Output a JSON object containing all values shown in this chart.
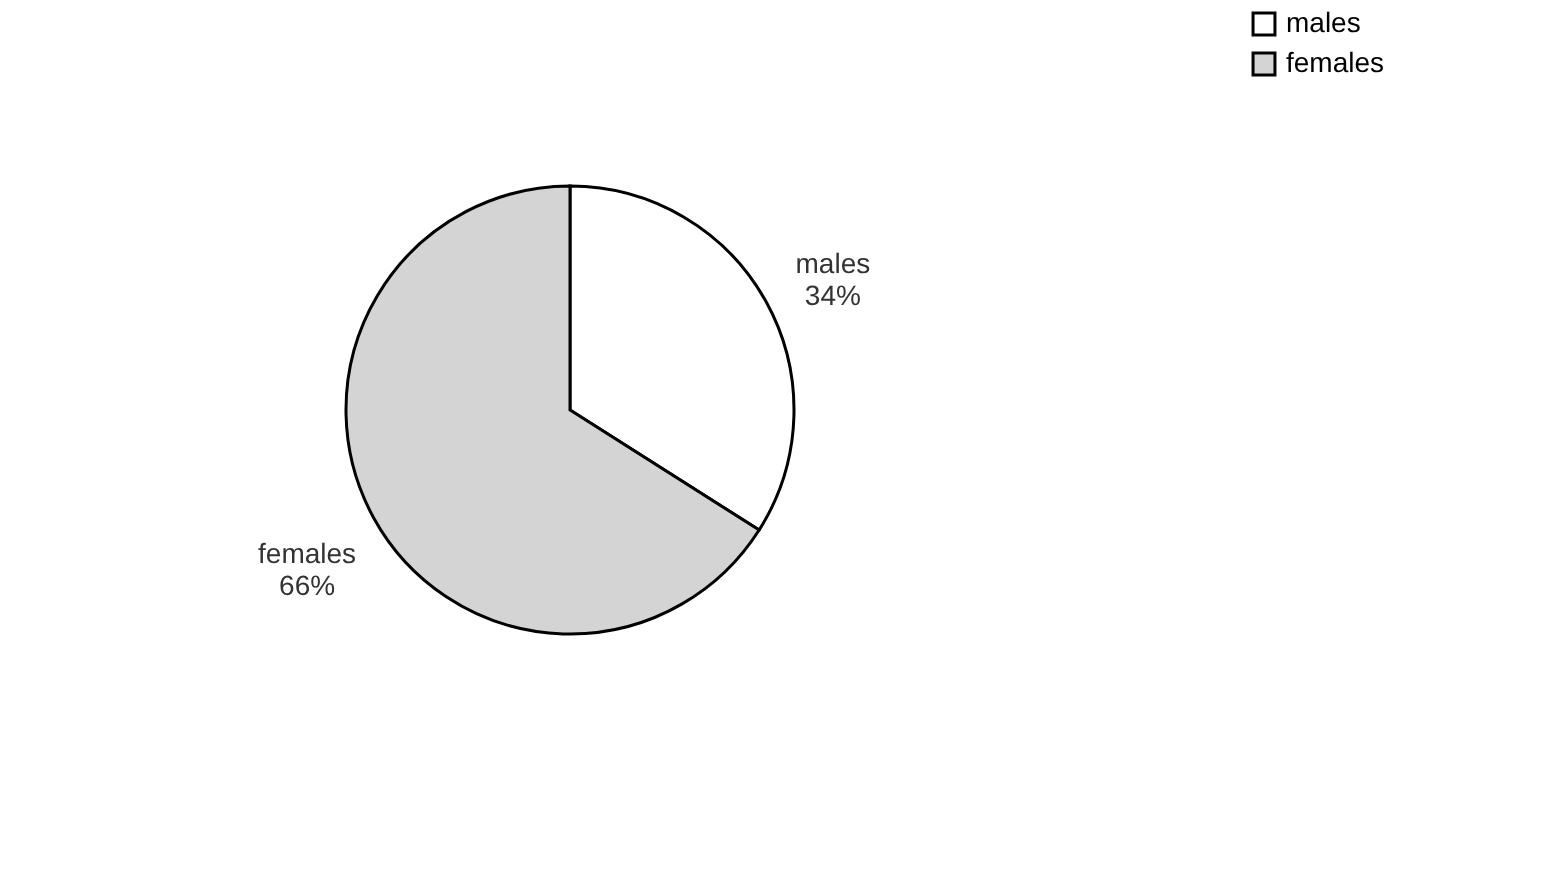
{
  "chart_data": {
    "type": "pie",
    "categories": [
      "males",
      "females"
    ],
    "values": [
      34,
      66
    ],
    "value_labels": [
      "34%",
      "66%"
    ],
    "colors": [
      "#ffffff",
      "#d4d4d4"
    ],
    "legend": "right"
  }
}
